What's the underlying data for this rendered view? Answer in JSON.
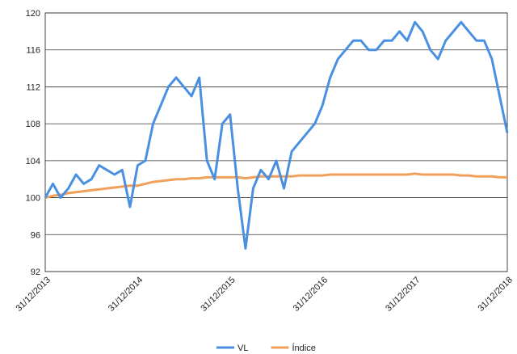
{
  "chart_data": {
    "type": "line",
    "categories": [
      "31/12/2013",
      null,
      null,
      null,
      null,
      null,
      null,
      null,
      null,
      null,
      null,
      null,
      "31/12/2014",
      null,
      null,
      null,
      null,
      null,
      null,
      null,
      null,
      null,
      null,
      null,
      "31/12/2015",
      null,
      null,
      null,
      null,
      null,
      null,
      null,
      null,
      null,
      null,
      null,
      "31/12/2016",
      null,
      null,
      null,
      null,
      null,
      null,
      null,
      null,
      null,
      null,
      null,
      "31/12/2017",
      null,
      null,
      null,
      null,
      null,
      null,
      null,
      null,
      null,
      null,
      null,
      "31/12/2018"
    ],
    "series": [
      {
        "name": "VL",
        "color": "#4a90e2",
        "values": [
          100,
          101.5,
          100,
          101,
          102.5,
          101.5,
          102,
          103.5,
          103,
          102.5,
          103,
          99,
          103.5,
          104,
          108,
          110,
          112,
          113,
          112,
          111,
          113,
          104,
          102,
          108,
          109,
          101,
          94.5,
          101,
          103,
          102,
          104,
          101,
          105,
          106,
          107,
          108,
          110,
          113,
          115,
          116,
          117,
          117,
          116,
          116,
          117,
          117,
          118,
          117,
          119,
          118,
          116,
          115,
          117,
          118,
          119,
          118,
          117,
          117,
          115,
          111,
          107
        ]
      },
      {
        "name": "Índice",
        "color": "#f0a05a",
        "values": [
          100,
          100.2,
          100.3,
          100.5,
          100.6,
          100.7,
          100.8,
          100.9,
          101,
          101.1,
          101.2,
          101.3,
          101.3,
          101.5,
          101.7,
          101.8,
          101.9,
          102,
          102,
          102.1,
          102.1,
          102.2,
          102.2,
          102.2,
          102.2,
          102.2,
          102.1,
          102.2,
          102.3,
          102.3,
          102.3,
          102.3,
          102.3,
          102.4,
          102.4,
          102.4,
          102.4,
          102.5,
          102.5,
          102.5,
          102.5,
          102.5,
          102.5,
          102.5,
          102.5,
          102.5,
          102.5,
          102.5,
          102.6,
          102.5,
          102.5,
          102.5,
          102.5,
          102.5,
          102.4,
          102.4,
          102.3,
          102.3,
          102.3,
          102.2,
          102.2
        ]
      }
    ],
    "ylim": [
      92,
      120
    ],
    "yticks": [
      92,
      96,
      100,
      104,
      108,
      112,
      116,
      120
    ],
    "grid": true,
    "legend": "bottom"
  }
}
